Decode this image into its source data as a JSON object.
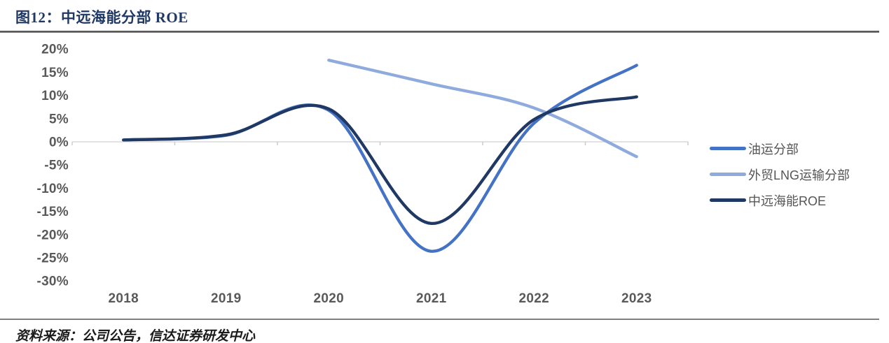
{
  "header": {
    "title": "图12：中远海能分部 ROE"
  },
  "footer": {
    "source": "资料来源：公司公告，信达证券研发中心"
  },
  "chart_data": {
    "type": "line",
    "title": "中远海能分部 ROE",
    "xlabel": "",
    "ylabel": "",
    "unit": "%",
    "smoothed": true,
    "grid": "none",
    "legend_position": "right",
    "categories": [
      "2018",
      "2019",
      "2020",
      "2021",
      "2022",
      "2023"
    ],
    "series": [
      {
        "name": "油运分部",
        "color": "#4472C4",
        "values": [
          0.4,
          1.4,
          6.8,
          -23.6,
          4.0,
          16.5
        ]
      },
      {
        "name": "外贸LNG运输分部",
        "color": "#8FAADC",
        "values": [
          null,
          null,
          17.6,
          12.5,
          7.3,
          -3.2
        ]
      },
      {
        "name": "中远海能ROE",
        "color": "#1F3864",
        "values": [
          0.4,
          1.5,
          7.1,
          -17.6,
          4.8,
          9.7
        ]
      }
    ],
    "ylim": [
      -30,
      20
    ],
    "ytick_step": 5,
    "ytick_labels": [
      "20%",
      "15%",
      "10%",
      "5%",
      "0%",
      "-5%",
      "-10%",
      "-15%",
      "-20%",
      "-25%",
      "-30%"
    ],
    "colors": {
      "title": "#1F3864",
      "axis_line": "#D9D9D9",
      "tick": "#C9C9C9",
      "axis_text": "#595959",
      "rule_dark": "#3F3F3F",
      "rule_bottom": "#7F7F7F"
    }
  }
}
